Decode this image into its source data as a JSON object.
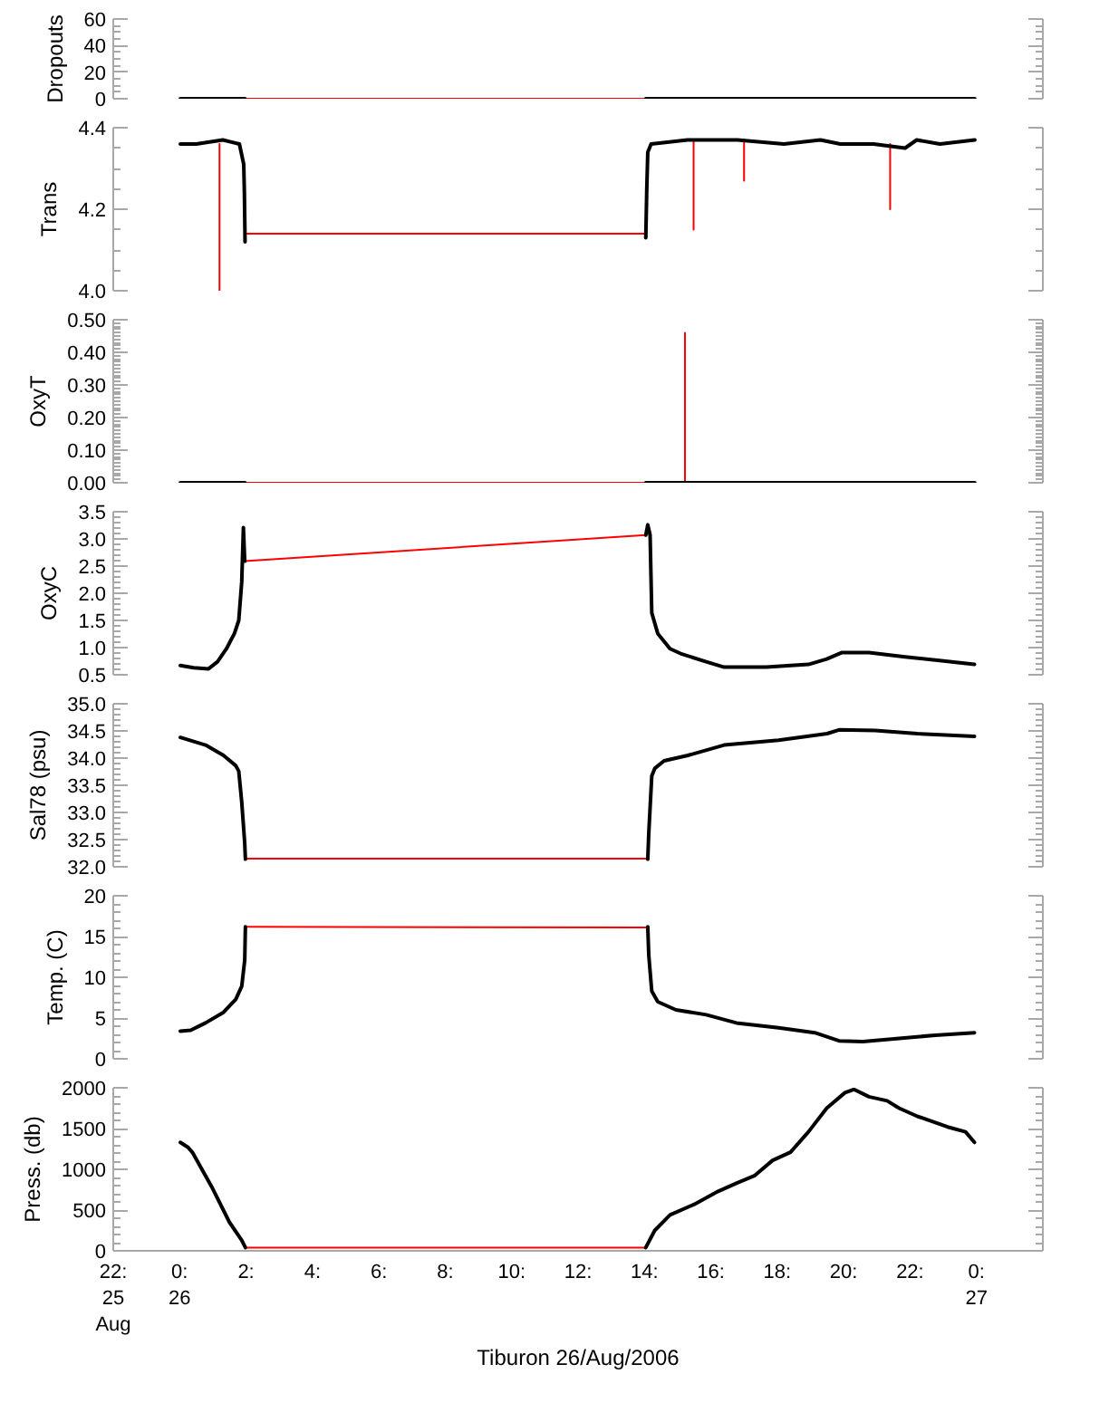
{
  "chart_data": [
    {
      "type": "line",
      "ylabel": "Dropouts",
      "xlim": [
        -2,
        26
      ],
      "ylim": [
        0,
        60
      ],
      "tick_labels": "y",
      "yticks": [
        0,
        {
          "value": 5,
          "label": null
        },
        {
          "value": 10,
          "label": null
        },
        {
          "value": 15,
          "label": null
        },
        20,
        {
          "value": 25,
          "label": null
        },
        {
          "value": 30,
          "label": null
        },
        {
          "value": 35,
          "label": null
        },
        40,
        {
          "value": 45,
          "label": null
        },
        {
          "value": 50,
          "label": null
        },
        {
          "value": 55,
          "label": null
        },
        60
      ],
      "series": [
        {
          "color": "#ff0000",
          "x": [
            1.97,
            14.04
          ],
          "values": [
            0,
            0
          ]
        },
        {
          "color": "#000000",
          "x": [
            0.02,
            1.97,
            8,
            14.04,
            23.95
          ],
          "values": [
            0,
            0,
            null,
            0,
            0
          ]
        }
      ]
    },
    {
      "type": "line",
      "ylabel": "Trans",
      "xlim": [
        -2,
        26
      ],
      "ylim": [
        4.0,
        4.4
      ],
      "tick_labels": "y",
      "yticks": [
        {
          "value": 4.0,
          "label": "4.0"
        },
        {
          "value": 4.05,
          "label": null
        },
        {
          "value": 4.1,
          "label": null
        },
        {
          "value": 4.15,
          "label": null
        },
        4.2,
        {
          "value": 4.25,
          "label": null
        },
        {
          "value": 4.3,
          "label": null
        },
        {
          "value": 4.35,
          "label": null
        },
        4.4
      ],
      "series": [
        {
          "color": "#ff0000",
          "x": [
            1.2,
            1.2,
            1.5,
            1.98,
            14.02,
            15.0,
            15.48,
            15.48,
            16.0,
            17.0,
            17.0,
            19.0,
            21.4,
            21.4
          ],
          "values": [
            4.36,
            4.0,
            null,
            4.14,
            4.14,
            null,
            4.37,
            4.15,
            null,
            4.37,
            4.27,
            null,
            4.36,
            4.2
          ]
        },
        {
          "color": "#000000",
          "x": [
            0.02,
            0.5,
            1.3,
            1.8,
            1.93,
            1.95,
            1.97,
            8.0,
            14.04,
            14.07,
            14.1,
            14.2,
            15.3,
            16.8,
            18.2,
            19.3,
            19.9,
            20.9,
            21.85,
            22.2,
            22.9,
            23.95
          ],
          "values": [
            4.36,
            4.36,
            4.37,
            4.36,
            4.31,
            4.24,
            4.12,
            null,
            4.13,
            4.25,
            4.34,
            4.36,
            4.37,
            4.37,
            4.36,
            4.37,
            4.36,
            4.36,
            4.35,
            4.37,
            4.36,
            4.37
          ]
        }
      ]
    },
    {
      "type": "line",
      "ylabel": "OxyT",
      "xlim": [
        -2,
        26
      ],
      "ylim": [
        0,
        0.5
      ],
      "tick_labels": "y",
      "yticks": [
        {
          "value": 0,
          "label": "0.00"
        },
        {
          "value": 0.01,
          "label": null
        },
        {
          "value": 0.02,
          "label": null
        },
        {
          "value": 0.03,
          "label": null
        },
        {
          "value": 0.04,
          "label": null
        },
        {
          "value": 0.05,
          "label": null
        },
        {
          "value": 0.06,
          "label": null
        },
        {
          "value": 0.07,
          "label": null
        },
        {
          "value": 0.08,
          "label": null
        },
        {
          "value": 0.09,
          "label": null
        },
        {
          "value": 0.1,
          "label": "0.10"
        },
        {
          "value": 0.11,
          "label": null
        },
        {
          "value": 0.12,
          "label": null
        },
        {
          "value": 0.13,
          "label": null
        },
        {
          "value": 0.14,
          "label": null
        },
        {
          "value": 0.15,
          "label": null
        },
        {
          "value": 0.16,
          "label": null
        },
        {
          "value": 0.17,
          "label": null
        },
        {
          "value": 0.18,
          "label": null
        },
        {
          "value": 0.19,
          "label": null
        },
        {
          "value": 0.2,
          "label": "0.20"
        },
        {
          "value": 0.21,
          "label": null
        },
        {
          "value": 0.22,
          "label": null
        },
        {
          "value": 0.23,
          "label": null
        },
        {
          "value": 0.24,
          "label": null
        },
        {
          "value": 0.25,
          "label": null
        },
        {
          "value": 0.26,
          "label": null
        },
        {
          "value": 0.27,
          "label": null
        },
        {
          "value": 0.28,
          "label": null
        },
        {
          "value": 0.29,
          "label": null
        },
        {
          "value": 0.3,
          "label": "0.30"
        },
        {
          "value": 0.31,
          "label": null
        },
        {
          "value": 0.32,
          "label": null
        },
        {
          "value": 0.33,
          "label": null
        },
        {
          "value": 0.34,
          "label": null
        },
        {
          "value": 0.35,
          "label": null
        },
        {
          "value": 0.36,
          "label": null
        },
        {
          "value": 0.37,
          "label": null
        },
        {
          "value": 0.38,
          "label": null
        },
        {
          "value": 0.39,
          "label": null
        },
        {
          "value": 0.4,
          "label": "0.40"
        },
        {
          "value": 0.41,
          "label": null
        },
        {
          "value": 0.42,
          "label": null
        },
        {
          "value": 0.43,
          "label": null
        },
        {
          "value": 0.44,
          "label": null
        },
        {
          "value": 0.45,
          "label": null
        },
        {
          "value": 0.46,
          "label": null
        },
        {
          "value": 0.47,
          "label": null
        },
        {
          "value": 0.48,
          "label": null
        },
        {
          "value": 0.49,
          "label": null
        },
        {
          "value": 0.5,
          "label": "0.50"
        }
      ],
      "series": [
        {
          "color": "#ff0000",
          "x": [
            1.97,
            14.04,
            15.0,
            15.22,
            15.22
          ],
          "values": [
            0,
            0,
            null,
            0,
            0.46
          ]
        },
        {
          "color": "#000000",
          "x": [
            0.02,
            1.97,
            8,
            14.04,
            23.95
          ],
          "values": [
            0,
            0,
            null,
            0,
            0
          ]
        }
      ]
    },
    {
      "type": "line",
      "ylabel": "OxyC",
      "xlim": [
        -2,
        26
      ],
      "ylim": [
        0.5,
        3.5
      ],
      "tick_labels": "y",
      "yticks": [
        0.5,
        {
          "value": 0.6,
          "label": null
        },
        {
          "value": 0.7,
          "label": null
        },
        {
          "value": 0.8,
          "label": null
        },
        {
          "value": 0.9,
          "label": null
        },
        {
          "value": 1.0,
          "label": "1.0"
        },
        {
          "value": 1.1,
          "label": null
        },
        {
          "value": 1.2,
          "label": null
        },
        {
          "value": 1.3,
          "label": null
        },
        {
          "value": 1.4,
          "label": null
        },
        1.5,
        {
          "value": 1.6,
          "label": null
        },
        {
          "value": 1.7,
          "label": null
        },
        {
          "value": 1.8,
          "label": null
        },
        {
          "value": 1.9,
          "label": null
        },
        {
          "value": 2.0,
          "label": "2.0"
        },
        {
          "value": 2.1,
          "label": null
        },
        {
          "value": 2.2,
          "label": null
        },
        {
          "value": 2.3,
          "label": null
        },
        {
          "value": 2.4,
          "label": null
        },
        2.5,
        {
          "value": 2.6,
          "label": null
        },
        {
          "value": 2.7,
          "label": null
        },
        {
          "value": 2.8,
          "label": null
        },
        {
          "value": 2.9,
          "label": null
        },
        {
          "value": 3.0,
          "label": "3.0"
        },
        {
          "value": 3.1,
          "label": null
        },
        {
          "value": 3.2,
          "label": null
        },
        {
          "value": 3.3,
          "label": null
        },
        {
          "value": 3.4,
          "label": null
        },
        3.5
      ],
      "series": [
        {
          "color": "#ff0000",
          "x": [
            1.96,
            14.04
          ],
          "values": [
            2.59,
            3.07
          ]
        },
        {
          "color": "#000000",
          "x": [
            0.02,
            0.42,
            0.87,
            1.14,
            1.41,
            1.65,
            1.78,
            1.87,
            1.92,
            1.96,
            8.0,
            14.04,
            14.1,
            14.17,
            14.22,
            14.4,
            14.77,
            15.13,
            15.86,
            16.4,
            17.67,
            18.94,
            19.49,
            19.95,
            20.76,
            21.85,
            22.76,
            23.94
          ],
          "values": [
            0.67,
            0.63,
            0.61,
            0.74,
            0.98,
            1.26,
            1.5,
            2.21,
            3.21,
            2.59,
            null,
            3.07,
            3.26,
            3.07,
            1.64,
            1.26,
            0.98,
            0.88,
            0.74,
            0.64,
            0.64,
            0.69,
            0.79,
            0.91,
            0.91,
            0.83,
            0.77,
            0.69
          ]
        }
      ]
    },
    {
      "type": "line",
      "ylabel": "Sal78 (psu)",
      "xlim": [
        -2,
        26
      ],
      "ylim": [
        32.0,
        35.0
      ],
      "tick_labels": "y",
      "yticks": [
        {
          "value": 32.0,
          "label": "32.0"
        },
        {
          "value": 32.1,
          "label": null
        },
        {
          "value": 32.2,
          "label": null
        },
        {
          "value": 32.3,
          "label": null
        },
        {
          "value": 32.4,
          "label": null
        },
        32.5,
        {
          "value": 32.6,
          "label": null
        },
        {
          "value": 32.7,
          "label": null
        },
        {
          "value": 32.8,
          "label": null
        },
        {
          "value": 32.9,
          "label": null
        },
        {
          "value": 33.0,
          "label": "33.0"
        },
        {
          "value": 33.1,
          "label": null
        },
        {
          "value": 33.2,
          "label": null
        },
        {
          "value": 33.3,
          "label": null
        },
        {
          "value": 33.4,
          "label": null
        },
        33.5,
        {
          "value": 33.6,
          "label": null
        },
        {
          "value": 33.7,
          "label": null
        },
        {
          "value": 33.8,
          "label": null
        },
        {
          "value": 33.9,
          "label": null
        },
        {
          "value": 34.0,
          "label": "34.0"
        },
        {
          "value": 34.1,
          "label": null
        },
        {
          "value": 34.2,
          "label": null
        },
        {
          "value": 34.3,
          "label": null
        },
        {
          "value": 34.4,
          "label": null
        },
        34.5,
        {
          "value": 34.6,
          "label": null
        },
        {
          "value": 34.7,
          "label": null
        },
        {
          "value": 34.8,
          "label": null
        },
        {
          "value": 34.9,
          "label": null
        },
        {
          "value": 35.0,
          "label": "35.0"
        }
      ],
      "series": [
        {
          "color": "#ff0000",
          "x": [
            1.98,
            14.1
          ],
          "values": [
            32.15,
            32.15
          ]
        },
        {
          "color": "#000000",
          "x": [
            0.02,
            0.78,
            1.32,
            1.69,
            1.78,
            1.87,
            1.96,
            1.98,
            8.0,
            14.1,
            14.13,
            14.22,
            14.31,
            14.59,
            15.31,
            16.4,
            18.04,
            19.5,
            19.86,
            20.95,
            22.22,
            23.94
          ],
          "values": [
            34.38,
            34.24,
            34.05,
            33.86,
            33.76,
            33.19,
            32.43,
            32.14,
            null,
            32.14,
            32.62,
            33.67,
            33.81,
            33.95,
            34.05,
            34.24,
            34.33,
            34.45,
            34.52,
            34.51,
            34.45,
            34.4
          ]
        }
      ]
    },
    {
      "type": "line",
      "ylabel": "Temp. (C)",
      "xlim": [
        -2,
        26
      ],
      "ylim": [
        0,
        20
      ],
      "tick_labels": "y",
      "yticks": [
        0,
        {
          "value": 1,
          "label": null
        },
        {
          "value": 2,
          "label": null
        },
        {
          "value": 3,
          "label": null
        },
        {
          "value": 4,
          "label": null
        },
        5,
        {
          "value": 6,
          "label": null
        },
        {
          "value": 7,
          "label": null
        },
        {
          "value": 8,
          "label": null
        },
        {
          "value": 9,
          "label": null
        },
        10,
        {
          "value": 11,
          "label": null
        },
        {
          "value": 12,
          "label": null
        },
        {
          "value": 13,
          "label": null
        },
        {
          "value": 14,
          "label": null
        },
        15,
        {
          "value": 16,
          "label": null
        },
        {
          "value": 17,
          "label": null
        },
        {
          "value": 18,
          "label": null
        },
        {
          "value": 19,
          "label": null
        },
        20
      ],
      "series": [
        {
          "color": "#ff0000",
          "x": [
            1.98,
            14.1
          ],
          "values": [
            16.2,
            16.1
          ]
        },
        {
          "color": "#000000",
          "x": [
            0.02,
            0.33,
            0.78,
            1.32,
            1.69,
            1.87,
            1.96,
            1.98,
            8.0,
            14.1,
            14.13,
            14.22,
            14.4,
            14.95,
            15.86,
            16.77,
            18.04,
            19.13,
            19.86,
            20.58,
            21.67,
            22.76,
            23.94
          ],
          "values": [
            3.4,
            3.5,
            4.4,
            5.7,
            7.3,
            8.9,
            12.1,
            16.2,
            null,
            16.2,
            12.7,
            8.3,
            7.0,
            6.0,
            5.4,
            4.4,
            3.8,
            3.2,
            2.2,
            2.1,
            2.5,
            2.9,
            3.2
          ]
        }
      ]
    },
    {
      "type": "line",
      "ylabel": "Press. (db)",
      "xlabel": "Tiburon 26/Aug/2006",
      "xlim": [
        -2,
        26
      ],
      "ylim": [
        0,
        2000
      ],
      "xticks": [
        {
          "value": -2,
          "label": "22:\n25\nAug"
        },
        {
          "value": 0,
          "label": "0:\n26"
        },
        {
          "value": 2,
          "label": "2:"
        },
        {
          "value": 4,
          "label": "4:"
        },
        {
          "value": 6,
          "label": "6:"
        },
        {
          "value": 8,
          "label": "8:"
        },
        {
          "value": 10,
          "label": "10:"
        },
        {
          "value": 12,
          "label": "12:"
        },
        {
          "value": 14,
          "label": "14:"
        },
        {
          "value": 16,
          "label": "16:"
        },
        {
          "value": 18,
          "label": "18:"
        },
        {
          "value": 20,
          "label": "20:"
        },
        {
          "value": 22,
          "label": "22:"
        },
        {
          "value": 24,
          "label": "0:\n27"
        }
      ],
      "yticks": [
        0,
        {
          "value": 100,
          "label": null
        },
        {
          "value": 200,
          "label": null
        },
        {
          "value": 300,
          "label": null
        },
        {
          "value": 400,
          "label": null
        },
        500,
        {
          "value": 600,
          "label": null
        },
        {
          "value": 700,
          "label": null
        },
        {
          "value": 800,
          "label": null
        },
        {
          "value": 900,
          "label": null
        },
        1000,
        {
          "value": 1100,
          "label": null
        },
        {
          "value": 1200,
          "label": null
        },
        {
          "value": 1300,
          "label": null
        },
        {
          "value": 1400,
          "label": null
        },
        1500,
        {
          "value": 1600,
          "label": null
        },
        {
          "value": 1700,
          "label": null
        },
        {
          "value": 1800,
          "label": null
        },
        {
          "value": 1900,
          "label": null
        },
        2000
      ],
      "series": [
        {
          "color": "#ff0000",
          "x": [
            1.98,
            14.04
          ],
          "values": [
            40,
            40
          ]
        },
        {
          "color": "#000000",
          "x": [
            0.02,
            0.25,
            0.38,
            0.96,
            1.5,
            1.87,
            1.98,
            8.0,
            14.04,
            14.31,
            14.77,
            15.5,
            16.22,
            16.77,
            17.31,
            17.86,
            18.4,
            18.94,
            19.49,
            20.04,
            20.31,
            20.76,
            21.31,
            21.67,
            22.22,
            23.13,
            23.67,
            23.94
          ],
          "values": [
            1330,
            1270,
            1210,
            790,
            350,
            130,
            40,
            null,
            40,
            250,
            440,
            570,
            730,
            830,
            920,
            1110,
            1210,
            1460,
            1750,
            1940,
            1980,
            1890,
            1840,
            1750,
            1650,
            1520,
            1460,
            1330
          ]
        }
      ]
    }
  ]
}
